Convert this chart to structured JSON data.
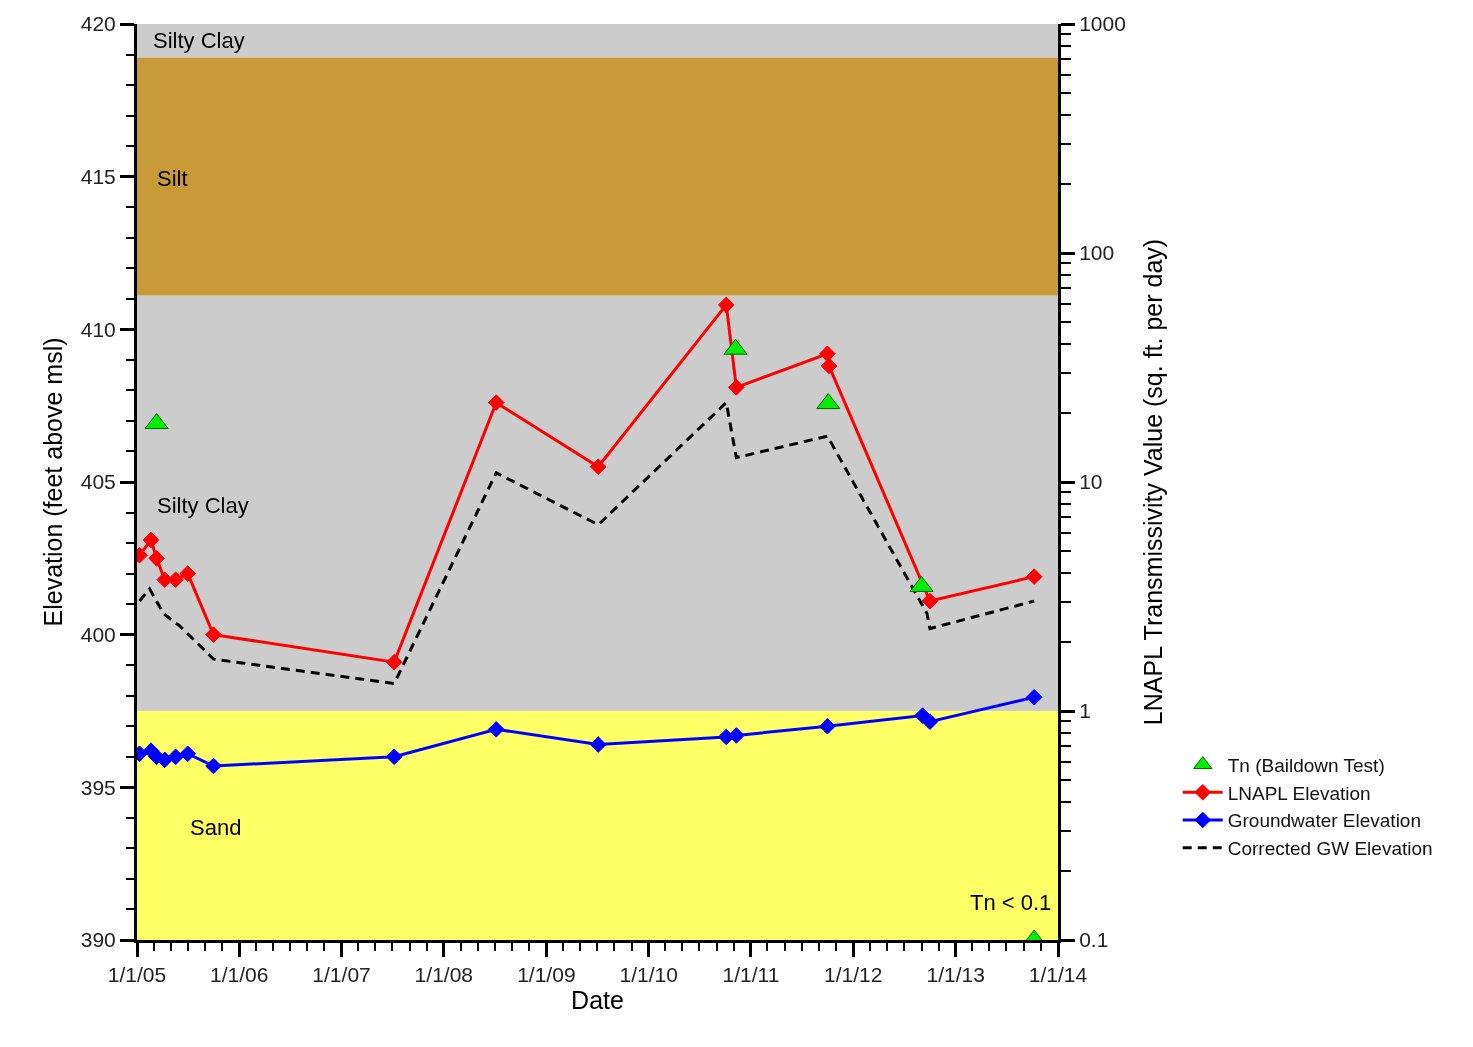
{
  "chart_data": {
    "type": "line",
    "xlabel": "Date",
    "ylabel": "Elevation (feet above msl)",
    "y2label": "LNAPL Transmissivity Value (sq. ft. per day)",
    "xlim": [
      "2005-01-01",
      "2014-01-01"
    ],
    "xticks": [
      {
        "value": "2005-01-01",
        "label": "1/1/05"
      },
      {
        "value": "2006-01-01",
        "label": "1/1/06"
      },
      {
        "value": "2007-01-01",
        "label": "1/1/07"
      },
      {
        "value": "2008-01-01",
        "label": "1/1/08"
      },
      {
        "value": "2009-01-01",
        "label": "1/1/09"
      },
      {
        "value": "2010-01-01",
        "label": "1/1/10"
      },
      {
        "value": "2011-01-01",
        "label": "1/1/11"
      },
      {
        "value": "2012-01-01",
        "label": "1/1/12"
      },
      {
        "value": "2013-01-01",
        "label": "1/1/13"
      },
      {
        "value": "2014-01-01",
        "label": "1/1/14"
      }
    ],
    "ylim": [
      390,
      420
    ],
    "yticks": [
      390,
      395,
      400,
      405,
      410,
      415,
      420
    ],
    "y2lim": [
      0.1,
      1000
    ],
    "y2ticks": [
      0.1,
      1,
      10,
      100,
      1000
    ],
    "log": "y2",
    "grid": false,
    "legend": "bottom right",
    "bands": [
      {
        "axis": "y",
        "from": 418.9,
        "to": 420,
        "label": "Silty Clay",
        "color": "#cccccc"
      },
      {
        "axis": "y",
        "from": 411.1,
        "to": 418.9,
        "label": "Silt",
        "color": "#c99a38"
      },
      {
        "axis": "y",
        "from": 397.5,
        "to": 411.1,
        "label": "Silty Clay",
        "color": "#cccccc"
      },
      {
        "axis": "y",
        "from": 390,
        "to": 397.5,
        "label": "Sand",
        "color": "#ffff66"
      }
    ],
    "series": [
      {
        "name": "Corrected GW Elevation",
        "color": "#000000",
        "marker": "none",
        "line_style": "dashed",
        "x": [
          "2005-01-10",
          "2005-02-15",
          "2005-04-05",
          "2005-05-15",
          "2005-06-01",
          "2005-10-01",
          "2007-07-08",
          "2008-07-06",
          "2009-07-05",
          "2010-10-05",
          "2010-11-10",
          "2011-10-01",
          "2012-09-20",
          "2012-10-01",
          "2013-10-08"
        ],
        "values": [
          401.1,
          401.5,
          400.7,
          400.4,
          400.3,
          399.2,
          398.4,
          405.3,
          403.6,
          407.6,
          405.8,
          406.5,
          400.7,
          400.2,
          401.1
        ]
      },
      {
        "name": "LNAPL Elevation",
        "color": "#ff0000",
        "marker": "diamond",
        "line_style": "solid",
        "x": [
          "2005-01-10",
          "2005-02-20",
          "2005-03-12",
          "2005-04-10",
          "2005-05-19",
          "2005-07-01",
          "2005-10-01",
          "2007-07-08",
          "2008-07-06",
          "2009-07-05",
          "2010-10-05",
          "2010-11-10",
          "2011-10-01",
          "2011-10-07",
          "2012-10-01",
          "2013-10-08"
        ],
        "values": [
          402.6,
          403.1,
          402.5,
          401.8,
          401.8,
          402.0,
          400.0,
          399.1,
          407.6,
          405.5,
          410.8,
          408.1,
          409.2,
          408.8,
          401.1,
          401.9
        ]
      },
      {
        "name": "Groundwater Elevation",
        "color": "#0000ff",
        "marker": "diamond",
        "line_style": "solid",
        "x": [
          "2005-01-10",
          "2005-02-20",
          "2005-03-12",
          "2005-04-10",
          "2005-05-19",
          "2005-07-01",
          "2005-10-01",
          "2007-07-08",
          "2008-07-06",
          "2009-07-05",
          "2010-10-05",
          "2010-11-10",
          "2011-10-01",
          "2012-09-05",
          "2012-10-01",
          "2013-10-08"
        ],
        "values": [
          396.1,
          396.2,
          396.0,
          395.9,
          396.0,
          396.1,
          395.7,
          396.0,
          396.9,
          396.4,
          396.65,
          396.7,
          397.0,
          397.35,
          397.15,
          397.95
        ]
      },
      {
        "name": "Tn (Baildown Test)",
        "type": "scatter",
        "axis": "y2",
        "color": "#00ee00",
        "marker": "triangle",
        "x": [
          "2005-03-12",
          "2010-11-07",
          "2011-10-04",
          "2012-09-01",
          "2013-10-08"
        ],
        "values": [
          18,
          38,
          22,
          3.5,
          0.1
        ]
      }
    ],
    "annotations": [
      "Tn < 0.1"
    ]
  }
}
